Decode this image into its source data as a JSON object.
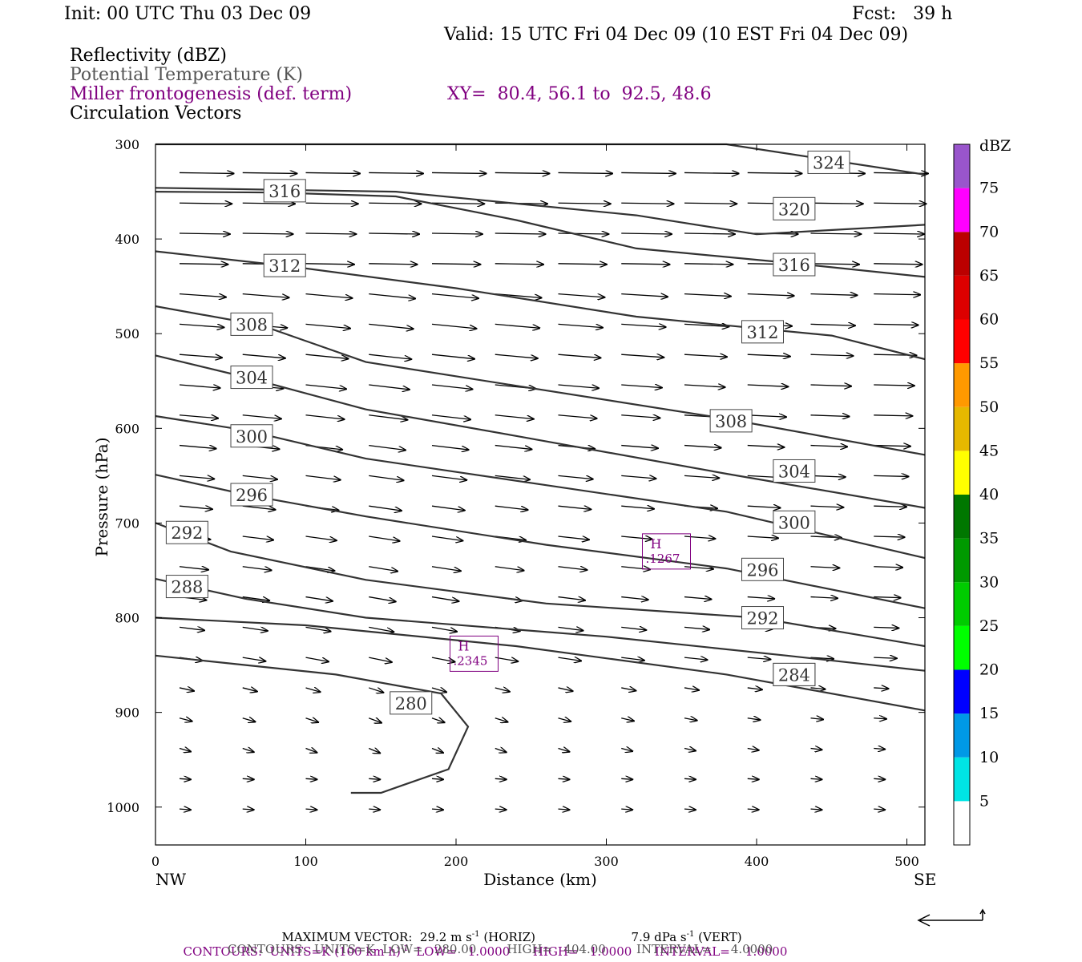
{
  "header": {
    "init": "Init: 00 UTC Thu 03 Dec 09",
    "fcst": "Fcst:   39 h",
    "valid": "Valid: 15 UTC Fri 04 Dec 09 (10 EST Fri 04 Dec 09)",
    "fields": [
      {
        "label": "Reflectivity (dBZ)",
        "color": "#000000"
      },
      {
        "label": "Potential Temperature (K)",
        "color": "#555555"
      },
      {
        "label": "Miller frontogenesis (def. term)",
        "color": "#800080"
      },
      {
        "label": "Circulation Vectors",
        "color": "#000000"
      }
    ],
    "xy": "XY=  80.4, 56.1 to  92.5, 48.6"
  },
  "chart_data": {
    "type": "line",
    "subtype": "cross-section",
    "xlabel": "Distance (km)",
    "ylabel": "Pressure (hPa)",
    "xlim": [
      0,
      512
    ],
    "ylim": [
      1040,
      300
    ],
    "x_ticks": [
      "0",
      "100",
      "200",
      "300",
      "400",
      "500"
    ],
    "y_ticks": [
      "300",
      "400",
      "500",
      "600",
      "700",
      "800",
      "900",
      "1000"
    ],
    "x_end_labels": {
      "left": "NW",
      "right": "SE"
    },
    "theta_contours": [
      {
        "value": 324,
        "label": "324",
        "points": [
          [
            0,
            300
          ],
          [
            380,
            300
          ],
          [
            512,
            332
          ]
        ],
        "labels_at": [
          [
            448,
            319
          ]
        ]
      },
      {
        "value": 320,
        "label": "320",
        "points": [
          [
            0,
            346
          ],
          [
            160,
            350
          ],
          [
            320,
            375
          ],
          [
            400,
            395
          ],
          [
            512,
            385
          ]
        ],
        "labels_at": [
          [
            425,
            368
          ]
        ]
      },
      {
        "value": 316,
        "label": "316",
        "points": [
          [
            0,
            350
          ],
          [
            80,
            351
          ],
          [
            160,
            355
          ],
          [
            240,
            380
          ],
          [
            320,
            410
          ],
          [
            420,
            425
          ],
          [
            512,
            440
          ]
        ],
        "labels_at": [
          [
            86,
            349
          ],
          [
            425,
            427
          ]
        ]
      },
      {
        "value": 312,
        "label": "312",
        "points": [
          [
            0,
            413
          ],
          [
            90,
            429
          ],
          [
            200,
            452
          ],
          [
            320,
            482
          ],
          [
            450,
            502
          ],
          [
            512,
            527
          ]
        ],
        "labels_at": [
          [
            86,
            428
          ],
          [
            404,
            498
          ]
        ]
      },
      {
        "value": 308,
        "label": "308",
        "points": [
          [
            0,
            471
          ],
          [
            70,
            491
          ],
          [
            140,
            530
          ],
          [
            240,
            555
          ],
          [
            380,
            590
          ],
          [
            512,
            628
          ]
        ],
        "labels_at": [
          [
            64,
            490
          ],
          [
            383,
            592
          ]
        ]
      },
      {
        "value": 304,
        "label": "304",
        "points": [
          [
            0,
            523
          ],
          [
            60,
            546
          ],
          [
            140,
            580
          ],
          [
            240,
            608
          ],
          [
            380,
            648
          ],
          [
            512,
            684
          ]
        ],
        "labels_at": [
          [
            64,
            546
          ],
          [
            425,
            645
          ]
        ]
      },
      {
        "value": 300,
        "label": "300",
        "points": [
          [
            0,
            587
          ],
          [
            60,
            602
          ],
          [
            140,
            632
          ],
          [
            260,
            660
          ],
          [
            380,
            688
          ],
          [
            512,
            737
          ]
        ],
        "labels_at": [
          [
            64,
            608
          ],
          [
            425,
            699
          ]
        ]
      },
      {
        "value": 296,
        "label": "296",
        "points": [
          [
            0,
            649
          ],
          [
            60,
            670
          ],
          [
            140,
            693
          ],
          [
            260,
            723
          ],
          [
            380,
            748
          ],
          [
            512,
            790
          ]
        ],
        "labels_at": [
          [
            64,
            670
          ],
          [
            404,
            749
          ]
        ]
      },
      {
        "value": 292,
        "label": "292",
        "points": [
          [
            0,
            700
          ],
          [
            50,
            730
          ],
          [
            140,
            760
          ],
          [
            260,
            785
          ],
          [
            400,
            800
          ],
          [
            512,
            830
          ]
        ],
        "labels_at": [
          [
            21,
            710
          ],
          [
            404,
            800
          ]
        ]
      },
      {
        "value": 288,
        "label": "288",
        "points": [
          [
            0,
            759
          ],
          [
            60,
            780
          ],
          [
            140,
            800
          ],
          [
            300,
            820
          ],
          [
            420,
            840
          ],
          [
            512,
            856
          ]
        ],
        "labels_at": [
          [
            21,
            767
          ],
          [
            425,
            860
          ]
        ]
      },
      {
        "value": 284,
        "label": "284",
        "points": [
          [
            0,
            800
          ],
          [
            100,
            808
          ],
          [
            240,
            830
          ],
          [
            380,
            860
          ],
          [
            512,
            898
          ]
        ],
        "labels_at": [
          [
            425,
            860
          ]
        ]
      },
      {
        "value": 280,
        "label": "280",
        "points": [
          [
            0,
            840
          ],
          [
            60,
            850
          ],
          [
            120,
            860
          ],
          [
            190,
            880
          ],
          [
            208,
            915
          ],
          [
            195,
            960
          ],
          [
            150,
            985
          ],
          [
            130,
            985
          ]
        ],
        "labels_at": [
          [
            170,
            890
          ]
        ]
      }
    ],
    "frontogenesis_maxima": [
      {
        "symbol": "H",
        "value": ".1267",
        "x": 340,
        "p": 730
      },
      {
        "symbol": "H",
        "value": ".2345",
        "x": 212,
        "p": 838
      }
    ],
    "colorbar": {
      "unit": "dBZ",
      "ticks": [
        "5",
        "10",
        "15",
        "20",
        "25",
        "30",
        "35",
        "40",
        "45",
        "50",
        "55",
        "60",
        "65",
        "70",
        "75"
      ],
      "colors": [
        "#00e5e5",
        "#0099e6",
        "#0000ff",
        "#00ff00",
        "#00cc00",
        "#009900",
        "#007700",
        "#ffff00",
        "#e6b800",
        "#ff9900",
        "#ff0000",
        "#dd0000",
        "#bb0000",
        "#ff00ff",
        "#9955cc"
      ]
    }
  },
  "footer": {
    "max_vector": "MAXIMUM VECTOR:  29.2 m s",
    "max_vector_horiz": "(HORIZ)",
    "max_vert": "7.9 dPa s",
    "max_vert_label": "(VERT)",
    "sup_minus1": "-1",
    "contours1_a": "CONTOURS:  UNITS=K (100 km h)",
    "contours1_b": "LOW=   1.0000      HIGH=   1.0000      INTERVAL=    1.0000",
    "contours2": "CONTOURS:  UNITS=K  LOW=   280.00        HIGH=   404.00        INTERVAL=     4.0000"
  }
}
